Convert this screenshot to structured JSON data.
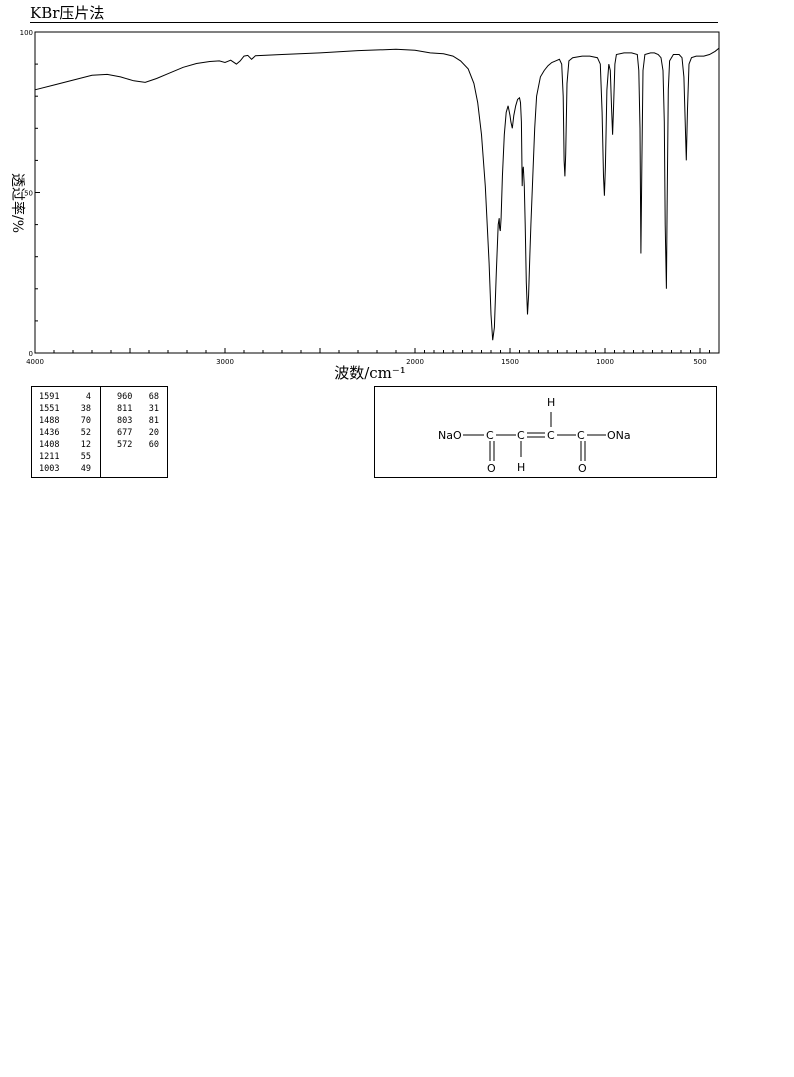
{
  "header": {
    "method": "KBr压片法"
  },
  "chart_data": {
    "type": "line",
    "title": "",
    "xlabel": "波数/cm⁻¹",
    "ylabel": "透过率/%",
    "xlim": [
      4000,
      400
    ],
    "ylim": [
      0,
      100
    ],
    "x_ticks": [
      "4000",
      "3000",
      "2000",
      "1500",
      "1000",
      "500"
    ],
    "x_tick_values": [
      4000,
      3000,
      2000,
      1500,
      1000,
      500
    ],
    "y_ticks": [
      "0",
      "50",
      "100"
    ],
    "y_tick_values": [
      0,
      50,
      100
    ],
    "series": [
      {
        "color": "#000000",
        "points": [
          [
            4000,
            82
          ],
          [
            3900,
            83.5
          ],
          [
            3800,
            85
          ],
          [
            3700,
            86.5
          ],
          [
            3620,
            86.8
          ],
          [
            3550,
            86
          ],
          [
            3480,
            84.8
          ],
          [
            3420,
            84.3
          ],
          [
            3360,
            85.5
          ],
          [
            3300,
            87
          ],
          [
            3220,
            89
          ],
          [
            3150,
            90.2
          ],
          [
            3080,
            90.8
          ],
          [
            3030,
            91
          ],
          [
            3000,
            90.5
          ],
          [
            2970,
            91.2
          ],
          [
            2940,
            90
          ],
          [
            2920,
            91
          ],
          [
            2900,
            92.5
          ],
          [
            2880,
            92.7
          ],
          [
            2860,
            91.5
          ],
          [
            2840,
            92.6
          ],
          [
            2700,
            93
          ],
          [
            2500,
            93.5
          ],
          [
            2300,
            94.2
          ],
          [
            2100,
            94.6
          ],
          [
            2000,
            94.3
          ],
          [
            1920,
            93.5
          ],
          [
            1850,
            93.2
          ],
          [
            1800,
            92.5
          ],
          [
            1760,
            91
          ],
          [
            1720,
            88.5
          ],
          [
            1690,
            84
          ],
          [
            1670,
            78
          ],
          [
            1650,
            68
          ],
          [
            1630,
            52
          ],
          [
            1610,
            28
          ],
          [
            1600,
            12
          ],
          [
            1591,
            4
          ],
          [
            1582,
            8
          ],
          [
            1572,
            25
          ],
          [
            1562,
            40
          ],
          [
            1557,
            42
          ],
          [
            1555,
            39
          ],
          [
            1551,
            38
          ],
          [
            1547,
            42
          ],
          [
            1540,
            55
          ],
          [
            1530,
            68
          ],
          [
            1520,
            75
          ],
          [
            1510,
            77
          ],
          [
            1500,
            74
          ],
          [
            1495,
            72
          ],
          [
            1488,
            70
          ],
          [
            1480,
            74
          ],
          [
            1470,
            77
          ],
          [
            1460,
            79
          ],
          [
            1450,
            79.5
          ],
          [
            1445,
            78
          ],
          [
            1440,
            72
          ],
          [
            1436,
            52
          ],
          [
            1434,
            56
          ],
          [
            1430,
            58
          ],
          [
            1425,
            52
          ],
          [
            1420,
            40
          ],
          [
            1414,
            22
          ],
          [
            1408,
            12
          ],
          [
            1402,
            18
          ],
          [
            1396,
            30
          ],
          [
            1390,
            40
          ],
          [
            1380,
            55
          ],
          [
            1370,
            70
          ],
          [
            1360,
            80
          ],
          [
            1340,
            86
          ],
          [
            1320,
            88
          ],
          [
            1300,
            89.5
          ],
          [
            1280,
            90.5
          ],
          [
            1260,
            91
          ],
          [
            1240,
            91.5
          ],
          [
            1228,
            90
          ],
          [
            1220,
            80
          ],
          [
            1215,
            60
          ],
          [
            1211,
            55
          ],
          [
            1207,
            62
          ],
          [
            1200,
            84
          ],
          [
            1190,
            91
          ],
          [
            1170,
            92
          ],
          [
            1120,
            92.5
          ],
          [
            1080,
            92.5
          ],
          [
            1040,
            92
          ],
          [
            1025,
            90
          ],
          [
            1015,
            75
          ],
          [
            1008,
            55
          ],
          [
            1003,
            49
          ],
          [
            998,
            58
          ],
          [
            990,
            82
          ],
          [
            980,
            90
          ],
          [
            972,
            88
          ],
          [
            965,
            76
          ],
          [
            960,
            68
          ],
          [
            955,
            76
          ],
          [
            948,
            90
          ],
          [
            940,
            93
          ],
          [
            900,
            93.5
          ],
          [
            860,
            93.5
          ],
          [
            830,
            93
          ],
          [
            822,
            88
          ],
          [
            816,
            70
          ],
          [
            811,
            31
          ],
          [
            806,
            60
          ],
          [
            800,
            88
          ],
          [
            790,
            93
          ],
          [
            760,
            93.5
          ],
          [
            740,
            93.5
          ],
          [
            720,
            93
          ],
          [
            705,
            92
          ],
          [
            695,
            88
          ],
          [
            688,
            72
          ],
          [
            683,
            40
          ],
          [
            677,
            20
          ],
          [
            673,
            45
          ],
          [
            667,
            82
          ],
          [
            660,
            91
          ],
          [
            640,
            93
          ],
          [
            610,
            93
          ],
          [
            595,
            92
          ],
          [
            585,
            86
          ],
          [
            578,
            72
          ],
          [
            572,
            60
          ],
          [
            566,
            76
          ],
          [
            558,
            90
          ],
          [
            545,
            92
          ],
          [
            520,
            92.5
          ],
          [
            480,
            92.5
          ],
          [
            450,
            93
          ],
          [
            420,
            94
          ],
          [
            400,
            95
          ]
        ]
      }
    ],
    "peaks": [
      {
        "wavenumber": "1591",
        "transmittance": "4"
      },
      {
        "wavenumber": "1551",
        "transmittance": "38"
      },
      {
        "wavenumber": "1488",
        "transmittance": "70"
      },
      {
        "wavenumber": "1436",
        "transmittance": "52"
      },
      {
        "wavenumber": "1408",
        "transmittance": "12"
      },
      {
        "wavenumber": "1211",
        "transmittance": "55"
      },
      {
        "wavenumber": "1003",
        "transmittance": "49"
      },
      {
        "wavenumber": "960",
        "transmittance": "68"
      },
      {
        "wavenumber": "811",
        "transmittance": "31"
      },
      {
        "wavenumber": "803",
        "transmittance": "81"
      },
      {
        "wavenumber": "677",
        "transmittance": "20"
      },
      {
        "wavenumber": "572",
        "transmittance": "60"
      }
    ]
  },
  "structure": {
    "left_group": "NaO",
    "right_group": "ONa",
    "carbon": "C",
    "oxygen": "O",
    "hydrogen": "H"
  }
}
